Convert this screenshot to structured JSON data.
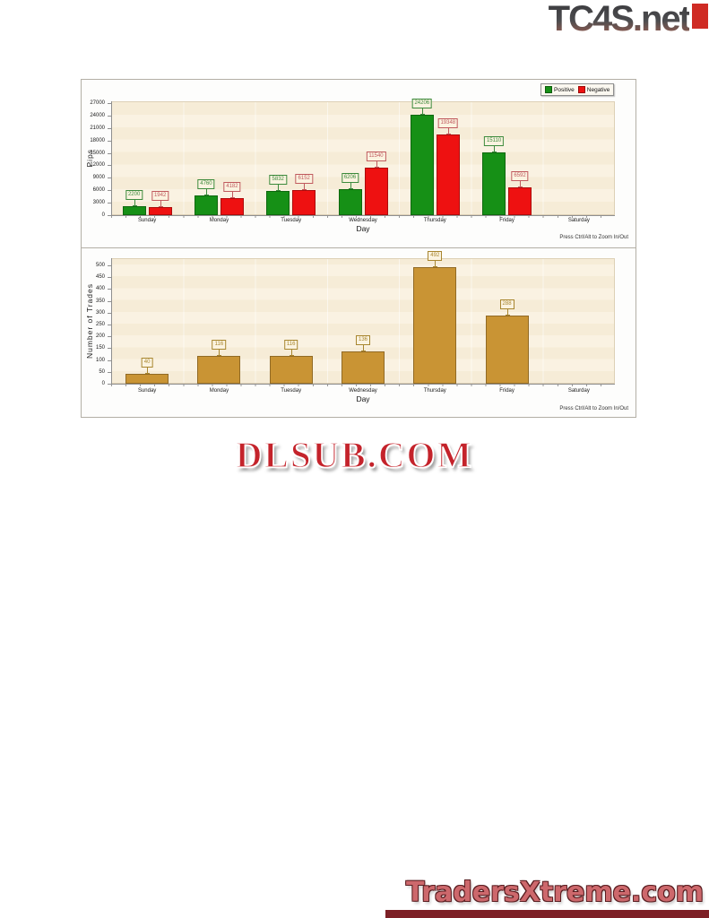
{
  "logos": {
    "top_right": "TC4S.net",
    "center": "DLSUB.COM",
    "bottom_right": "TradersXtreme.com"
  },
  "colors": {
    "positive": "#169016",
    "positive_label": "#3c8a3c",
    "negative": "#ee1111",
    "negative_label": "#c05a5e",
    "trades": "#c99434",
    "trades_label": "#a8862f",
    "plot_bg": "#f6ecd7",
    "plot_stripe": "#faf2e2",
    "label_bg": "#fbf3e0",
    "axis": "#8f8f8f",
    "panel_border": "#b3afa5",
    "tc4s_red_box": "#cf2b24",
    "dlsub_red": "#c4232b",
    "txtreme_fill": "#cd686c",
    "bottom_bar": "#7d2026"
  },
  "chart_data": [
    {
      "type": "bar",
      "id": "pips-chart",
      "categories": [
        "Sunday",
        "Monday",
        "Tuesday",
        "Wednesday",
        "Thursday",
        "Friday",
        "Saturday"
      ],
      "series": [
        {
          "name": "Positive",
          "color": "#169016",
          "label_color": "#3c8a3c",
          "values": [
            2200,
            4760,
            5832,
            6206,
            24206,
            15110,
            0
          ]
        },
        {
          "name": "Negative",
          "color": "#ee1111",
          "label_color": "#c05a5e",
          "values": [
            1942,
            4182,
            6152,
            11540,
            19348,
            6592,
            0
          ]
        }
      ],
      "xlabel": "Day",
      "ylabel": "Pips",
      "ylim": [
        0,
        27000
      ],
      "ytick_step": 3000,
      "legend_position": "top-right",
      "grid": "horizontal-bands",
      "footer": "Press Ctrl/Alt to Zoom In/Out"
    },
    {
      "type": "bar",
      "id": "trades-chart",
      "categories": [
        "Sunday",
        "Monday",
        "Tuesday",
        "Wednesday",
        "Thursday",
        "Friday",
        "Saturday"
      ],
      "series": [
        {
          "name": "Trades",
          "color": "#c99434",
          "label_color": "#a8862f",
          "values": [
            40,
            116,
            116,
            136,
            492,
            288,
            0
          ]
        }
      ],
      "xlabel": "Day",
      "ylabel": "Number of Trades",
      "ylim": [
        0,
        500
      ],
      "ytick_step": 50,
      "legend_position": "none",
      "grid": "horizontal-bands",
      "footer": "Press Ctrl/Alt to Zoom In/Out"
    }
  ]
}
